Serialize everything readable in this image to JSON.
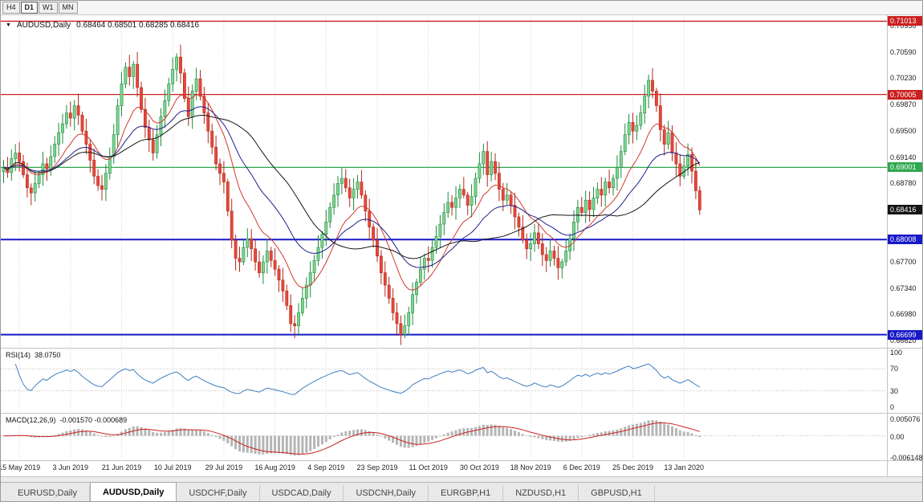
{
  "toolbar": {
    "timeframes": [
      "H4",
      "D1",
      "W1",
      "MN"
    ],
    "active": "D1"
  },
  "chart": {
    "symbol_period": "AUDUSD,Daily",
    "ohlc": "0.68464 0.68501 0.68285 0.68416"
  },
  "indicators": {
    "rsi": {
      "name": "RSI(14)",
      "value": "38.0750",
      "ticks": [
        "100",
        "70",
        "30",
        "0"
      ],
      "guides": [
        70,
        30
      ]
    },
    "macd": {
      "name": "MACD(12,26,9)",
      "value": "-0.001570 -0.000689",
      "ticks": [
        "0.005076",
        "0.00",
        "-0.006148"
      ]
    }
  },
  "price_axis": {
    "ticks": [
      "0.70950",
      "0.70590",
      "0.70230",
      "0.69870",
      "0.69500",
      "0.69140",
      "0.68780",
      "0.67700",
      "0.67340",
      "0.66980",
      "0.66620"
    ],
    "current": {
      "label": "0.68416",
      "price": 0.68416,
      "color": "#151515"
    }
  },
  "levels": [
    {
      "label": "0.71013",
      "price": 0.71013,
      "color": "#cc2020",
      "width": 1.3
    },
    {
      "label": "0.70005",
      "price": 0.70005,
      "color": "#cc2020",
      "width": 1.3
    },
    {
      "label": "0.69001",
      "price": 0.69001,
      "color": "#2fa84f",
      "width": 1.3
    },
    {
      "label": "0.68008",
      "price": 0.68008,
      "color": "#1818c8",
      "width": 2
    },
    {
      "label": "0.66699",
      "price": 0.66699,
      "color": "#1818c8",
      "width": 2
    }
  ],
  "x_axis": {
    "labels": [
      "15 May 2019",
      "3 Jun 2019",
      "21 Jun 2019",
      "10 Jul 2019",
      "29 Jul 2019",
      "16 Aug 2019",
      "4 Sep 2019",
      "23 Sep 2019",
      "11 Oct 2019",
      "30 Oct 2019",
      "18 Nov 2019",
      "6 Dec 2019",
      "25 Dec 2019",
      "13 Jan 2020"
    ],
    "first_index": 4,
    "step": 13
  },
  "tabs": [
    {
      "label": "EURUSD,Daily"
    },
    {
      "label": "AUDUSD,Daily",
      "active": true
    },
    {
      "label": "USDCHF,Daily"
    },
    {
      "label": "USDCAD,Daily"
    },
    {
      "label": "USDCNH,Daily"
    },
    {
      "label": "EURGBP,H1"
    },
    {
      "label": "NZDUSD,H1"
    },
    {
      "label": "GBPUSD,H1"
    }
  ],
  "chart_data": {
    "type": "candlestick",
    "symbol": "AUDUSD",
    "period": "Daily",
    "title": "AUDUSD,Daily",
    "last_ohlc": {
      "open": 0.68464,
      "high": 0.68501,
      "low": 0.68285,
      "close": 0.68416
    },
    "y_range": [
      0.6654,
      0.71095
    ],
    "y_ticks": [
      0.7095,
      0.7059,
      0.7023,
      0.6987,
      0.695,
      0.6914,
      0.6878,
      0.677,
      0.6734,
      0.6698,
      0.6662
    ],
    "x_labels": [
      "15 May 2019",
      "3 Jun 2019",
      "21 Jun 2019",
      "10 Jul 2019",
      "29 Jul 2019",
      "16 Aug 2019",
      "4 Sep 2019",
      "23 Sep 2019",
      "11 Oct 2019",
      "30 Oct 2019",
      "18 Nov 2019",
      "6 Dec 2019",
      "25 Dec 2019",
      "13 Jan 2020"
    ],
    "horizontal_levels": [
      0.71013,
      0.70005,
      0.69001,
      0.68008,
      0.66699
    ],
    "closes": [
      0.69,
      0.6893,
      0.6912,
      0.692,
      0.6908,
      0.689,
      0.6872,
      0.6865,
      0.6878,
      0.689,
      0.6905,
      0.6898,
      0.6915,
      0.6932,
      0.6948,
      0.696,
      0.6975,
      0.6968,
      0.6985,
      0.6972,
      0.695,
      0.6932,
      0.691,
      0.6888,
      0.6875,
      0.687,
      0.6892,
      0.6915,
      0.6945,
      0.6985,
      0.7015,
      0.7038,
      0.7025,
      0.7042,
      0.701,
      0.698,
      0.6955,
      0.6938,
      0.692,
      0.6945,
      0.697,
      0.6992,
      0.7015,
      0.7035,
      0.7052,
      0.703,
      0.6995,
      0.697,
      0.7005,
      0.7022,
      0.6998,
      0.6975,
      0.695,
      0.6928,
      0.6905,
      0.6892,
      0.688,
      0.684,
      0.68,
      0.6775,
      0.677,
      0.679,
      0.6802,
      0.6788,
      0.677,
      0.6755,
      0.677,
      0.6785,
      0.6772,
      0.676,
      0.6745,
      0.673,
      0.671,
      0.6685,
      0.6682,
      0.67,
      0.672,
      0.6738,
      0.6755,
      0.6772,
      0.679,
      0.6808,
      0.6825,
      0.6845,
      0.6862,
      0.6878,
      0.6885,
      0.6872,
      0.6858,
      0.687,
      0.688,
      0.6862,
      0.684,
      0.6818,
      0.68,
      0.6778,
      0.6755,
      0.6738,
      0.672,
      0.67,
      0.6685,
      0.667,
      0.6682,
      0.67,
      0.6725,
      0.6742,
      0.676,
      0.6775,
      0.6772,
      0.679,
      0.6805,
      0.6822,
      0.6838,
      0.6852,
      0.6845,
      0.6858,
      0.687,
      0.6862,
      0.6848,
      0.686,
      0.6885,
      0.6905,
      0.6922,
      0.689,
      0.6908,
      0.6892,
      0.687,
      0.6855,
      0.6862,
      0.6848,
      0.6832,
      0.6818,
      0.68,
      0.6788,
      0.6795,
      0.681,
      0.6795,
      0.678,
      0.6772,
      0.6785,
      0.6775,
      0.6762,
      0.677,
      0.6785,
      0.6802,
      0.6825,
      0.6845,
      0.6838,
      0.6855,
      0.6842,
      0.6858,
      0.687,
      0.6862,
      0.688,
      0.6872,
      0.6885,
      0.69,
      0.6922,
      0.6945,
      0.6962,
      0.695,
      0.6958,
      0.6975,
      0.6998,
      0.702,
      0.7005,
      0.6985,
      0.6952,
      0.6932,
      0.6948,
      0.692,
      0.6905,
      0.6888,
      0.6902,
      0.6918,
      0.6895,
      0.6868,
      0.68416
    ],
    "moving_averages": [
      {
        "color": "#d03a2c",
        "period": 12,
        "kind": "ema"
      },
      {
        "color": "#20208c",
        "period": 26,
        "kind": "ema"
      },
      {
        "color": "#161616",
        "period": 34,
        "kind": "sma"
      }
    ],
    "candle_colors": {
      "up_fill": "#7ed492",
      "up_stroke": "#1f8a3d",
      "down_fill": "#e8483a",
      "down_stroke": "#b3281c"
    },
    "rsi_last": 38.075,
    "macd_last": -0.00157,
    "macd_signal_last": -0.000689
  }
}
